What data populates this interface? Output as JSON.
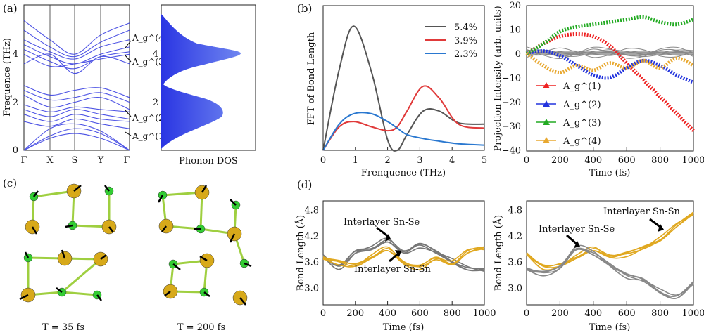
{
  "panel_labels": {
    "a": "(a)",
    "b": "(b)",
    "c": "(c)",
    "d": "(d)"
  },
  "panel_a": {
    "ylabel": "Frequence (THz)",
    "k_labels": [
      "Γ",
      "X",
      "S",
      "Y",
      "Γ"
    ],
    "yticks": [
      "0",
      "2",
      "4"
    ],
    "mode_labels": [
      "A_g^(4)",
      "A_g^(3)",
      "A_g^(2)",
      "A_g^(1)"
    ],
    "dos_label": "Phonon DOS",
    "dos_ticks": [
      "2",
      "4"
    ],
    "band_color": "#2f33e0",
    "dos_color": "#3340e6"
  },
  "panel_b_left": {
    "ylabel": "FFT of Bond Length",
    "xlabel": "Frenquence (THz)",
    "xticks": [
      "0",
      "1",
      "2",
      "3",
      "4",
      "5"
    ],
    "legend": [
      {
        "label": "5.4%",
        "color": "#555555"
      },
      {
        "label": "3.9%",
        "color": "#e03a3a"
      },
      {
        "label": "2.3%",
        "color": "#2a78d0"
      }
    ]
  },
  "panel_b_right": {
    "ylabel": "Projection Intensity (arb. units)",
    "xlabel": "Time (fs)",
    "xticks": [
      "0",
      "200",
      "400",
      "600",
      "800",
      "1000"
    ],
    "yticks": [
      "20",
      "10",
      "0",
      "−10",
      "−20",
      "−30",
      "−40"
    ],
    "legend": [
      {
        "label": "A_g^(1)",
        "color": "#ee2222"
      },
      {
        "label": "A_g^(2)",
        "color": "#2233dd"
      },
      {
        "label": "A_g^(3)",
        "color": "#22aa22"
      },
      {
        "label": "A_g^(4)",
        "color": "#e8a830"
      }
    ]
  },
  "panel_c": {
    "captions": [
      "T = 35 fs",
      "T = 200 fs"
    ],
    "sn_color": "#d7a91a",
    "se_color": "#33cc33"
  },
  "panel_d_left": {
    "ylabel": "Bond Length (Å)",
    "xlabel": "Time (fs)",
    "xticks": [
      "0",
      "200",
      "400",
      "600",
      "800",
      "1000"
    ],
    "yticks": [
      "4.8",
      "4.2",
      "3.6",
      "3.0"
    ],
    "annotations": [
      "Interlayer Sn-Se",
      "Interlayer Sn-Sn"
    ]
  },
  "panel_d_right": {
    "ylabel": "Bond Length (Å)",
    "xlabel": "Time (fs)",
    "xticks": [
      "0",
      "200",
      "400",
      "600",
      "800",
      "1000"
    ],
    "yticks": [
      "4.8",
      "4.2",
      "3.6",
      "3.0"
    ],
    "annotations": [
      "Interlayer Sn-Sn",
      "Interlayer Sn-Se"
    ]
  },
  "chart_data": [
    {
      "type": "line",
      "panel": "b-left",
      "x": [
        0,
        0.5,
        0.95,
        1.5,
        2,
        2.3,
        2.6,
        3.1,
        3.6,
        4.2,
        5
      ],
      "series": [
        {
          "name": "5.4%",
          "values": [
            0,
            0.62,
            0.95,
            0.6,
            0.08,
            0,
            0.12,
            0.3,
            0.3,
            0.21,
            0.2
          ]
        },
        {
          "name": "3.9%",
          "values": [
            0,
            0.18,
            0.22,
            0.18,
            0.15,
            0.18,
            0.3,
            0.49,
            0.4,
            0.2,
            0.17
          ]
        },
        {
          "name": "2.3%",
          "values": [
            0,
            0.2,
            0.28,
            0.28,
            0.22,
            0.17,
            0.12,
            0.09,
            0.07,
            0.05,
            0.04
          ]
        }
      ]
    },
    {
      "type": "line",
      "panel": "b-right",
      "x": [
        0,
        100,
        200,
        300,
        400,
        500,
        600,
        700,
        800,
        900,
        1000
      ],
      "ylim": [
        -40,
        20
      ],
      "series": [
        {
          "name": "A_g^(1)",
          "values": [
            0,
            4,
            7,
            8,
            7,
            3,
            -4,
            -11,
            -18,
            -25,
            -32
          ]
        },
        {
          "name": "A_g^(2)",
          "values": [
            0,
            1,
            -1,
            -5,
            -9,
            -10,
            -6,
            -3,
            -5,
            -9,
            -12
          ]
        },
        {
          "name": "A_g^(3)",
          "values": [
            0,
            4,
            9,
            11,
            12,
            13,
            14,
            15,
            13,
            12,
            14
          ]
        },
        {
          "name": "A_g^(4)",
          "values": [
            0,
            -5,
            -8,
            -5,
            -7,
            -4,
            -6,
            -3,
            -6,
            -2,
            -5
          ]
        }
      ]
    },
    {
      "type": "line",
      "panel": "d-left",
      "x": [
        0,
        100,
        200,
        300,
        400,
        500,
        600,
        700,
        800,
        900,
        1000
      ],
      "ylim": [
        2.6,
        5.0
      ],
      "series": [
        {
          "name": "Interlayer Sn-Se",
          "values": [
            3.7,
            3.5,
            3.85,
            3.9,
            4.05,
            3.8,
            4.0,
            3.85,
            3.6,
            3.4,
            3.4
          ]
        },
        {
          "name": "Interlayer Sn-Sn",
          "values": [
            3.65,
            3.6,
            3.55,
            3.7,
            3.85,
            3.55,
            3.5,
            3.7,
            3.55,
            3.8,
            3.9
          ]
        }
      ]
    },
    {
      "type": "line",
      "panel": "d-right",
      "x": [
        0,
        100,
        200,
        300,
        400,
        500,
        600,
        700,
        800,
        900,
        1000
      ],
      "ylim": [
        2.6,
        5.0
      ],
      "series": [
        {
          "name": "Interlayer Sn-Sn",
          "values": [
            3.75,
            3.5,
            3.55,
            3.7,
            3.85,
            3.7,
            3.8,
            3.95,
            4.1,
            4.4,
            4.7
          ]
        },
        {
          "name": "Interlayer Sn-Se",
          "values": [
            3.4,
            3.35,
            3.5,
            3.9,
            3.75,
            3.5,
            3.3,
            3.2,
            2.9,
            2.75,
            3.1
          ]
        }
      ]
    }
  ]
}
